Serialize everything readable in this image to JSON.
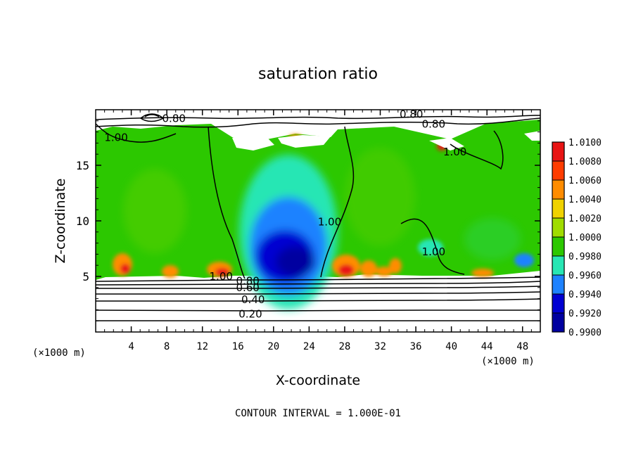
{
  "chart_data": {
    "type": "heatmap",
    "title": "saturation ratio",
    "xlabel": "X-coordinate",
    "ylabel": "Z-coordinate",
    "x_unit_left": "(×1000 m)",
    "x_unit_right": "(×1000 m)",
    "xlim": [
      0,
      50
    ],
    "ylim": [
      0,
      20
    ],
    "x_ticks": [
      4,
      8,
      12,
      16,
      20,
      24,
      28,
      32,
      36,
      40,
      44,
      48
    ],
    "x_tick_labels": [
      "4",
      "8",
      "12",
      "16",
      "20",
      "24",
      "28",
      "32",
      "36",
      "40",
      "44",
      "48"
    ],
    "y_ticks": [
      5,
      10,
      15
    ],
    "y_tick_labels": [
      "5",
      "10",
      "15"
    ],
    "footnote": "CONTOUR INTERVAL = 1.000E-01",
    "colorbar": {
      "levels": [
        1.01,
        1.008,
        1.006,
        1.004,
        1.002,
        1.0,
        0.998,
        0.996,
        0.994,
        0.992,
        0.99
      ],
      "labels": [
        "1.0100",
        "1.0080",
        "1.0060",
        "1.0040",
        "1.0020",
        "1.0000",
        "0.9980",
        "0.9960",
        "0.9940",
        "0.9920",
        "0.9900"
      ],
      "colors": [
        "#f08c8c",
        "#e81414",
        "#ff3c00",
        "#ff8c00",
        "#f0d200",
        "#a0dc00",
        "#2cc800",
        "#28e6b4",
        "#1e82ff",
        "#0000d2",
        "#0000a0",
        "#5a00a0"
      ]
    },
    "contour_labels": [
      {
        "text": "0.80",
        "x": 8.8,
        "z": 19.2
      },
      {
        "text": "0.80",
        "x": 35.5,
        "z": 19.6
      },
      {
        "text": "0.80",
        "x": 38.0,
        "z": 18.7
      },
      {
        "text": "1.00",
        "x": 2.3,
        "z": 17.5
      },
      {
        "text": "1.00",
        "x": 40.4,
        "z": 16.2
      },
      {
        "text": "1.00",
        "x": 26.3,
        "z": 9.9
      },
      {
        "text": "1.00",
        "x": 38.0,
        "z": 7.2
      },
      {
        "text": "1.00",
        "x": 14.1,
        "z": 5.0
      },
      {
        "text": "0.80",
        "x": 17.1,
        "z": 4.6
      },
      {
        "text": "0.60",
        "x": 17.1,
        "z": 4.0
      },
      {
        "text": "0.40",
        "x": 17.7,
        "z": 2.9
      },
      {
        "text": "0.20",
        "x": 17.4,
        "z": 1.6
      }
    ],
    "grid": false,
    "legend": "colorbar-right"
  }
}
